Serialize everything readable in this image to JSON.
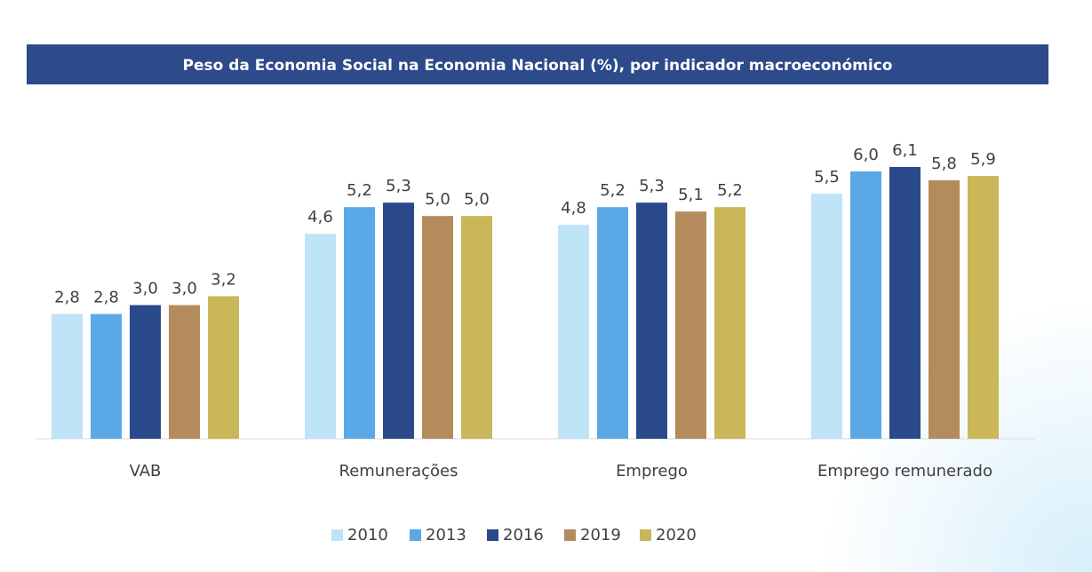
{
  "chart_data": {
    "type": "bar",
    "title": "Peso da Economia Social na Economia Nacional (%), por indicador macroeconómico",
    "categories": [
      "VAB",
      "Remunerações",
      "Emprego",
      "Emprego remunerado"
    ],
    "series": [
      {
        "name": "2010",
        "color": "#bfe3f7",
        "values": [
          2.8,
          4.6,
          4.8,
          5.5
        ],
        "value_labels": [
          "2,8",
          "4,6",
          "4,8",
          "5,5"
        ]
      },
      {
        "name": "2013",
        "color": "#5aa9e6",
        "values": [
          2.8,
          5.2,
          5.2,
          6.0
        ],
        "value_labels": [
          "2,8",
          "5,2",
          "5,2",
          "6,0"
        ]
      },
      {
        "name": "2016",
        "color": "#2b4a8c",
        "values": [
          3.0,
          5.3,
          5.3,
          6.1
        ],
        "value_labels": [
          "3,0",
          "5,3",
          "5,3",
          "6,1"
        ]
      },
      {
        "name": "2019",
        "color": "#b38b5d",
        "values": [
          3.0,
          5.0,
          5.1,
          5.8
        ],
        "value_labels": [
          "3,0",
          "5,0",
          "5,1",
          "5,8"
        ]
      },
      {
        "name": "2020",
        "color": "#c9b75a",
        "values": [
          3.2,
          5.0,
          5.2,
          5.9
        ],
        "value_labels": [
          "3,2",
          "5,0",
          "5,2",
          "5,9"
        ]
      }
    ],
    "legend": "bottom"
  }
}
